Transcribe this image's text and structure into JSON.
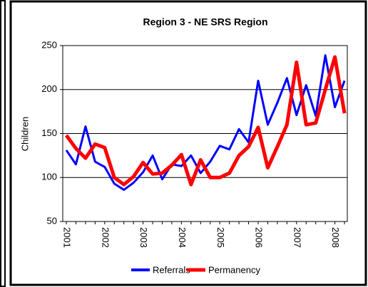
{
  "chart_data": {
    "type": "line",
    "title": "Region 3 - NE SRS Region",
    "ylabel": "Children",
    "categories": [
      "2001",
      null,
      null,
      null,
      "2002",
      null,
      null,
      null,
      "2003",
      null,
      null,
      null,
      "2004",
      null,
      null,
      null,
      "2005",
      null,
      null,
      null,
      "2006",
      null,
      null,
      null,
      "2007",
      null,
      null,
      null,
      "2008",
      null
    ],
    "series": [
      {
        "name": "Referrals",
        "color": "#0000ff",
        "values": [
          131,
          115,
          158,
          118,
          112,
          93,
          86,
          94,
          106,
          125,
          98,
          115,
          113,
          125,
          105,
          118,
          136,
          132,
          155,
          140,
          210,
          160,
          185,
          213,
          171,
          205,
          170,
          239,
          180,
          210
        ]
      },
      {
        "name": "Permanency",
        "color": "#ff0000",
        "values": [
          148,
          133,
          122,
          138,
          134,
          100,
          92,
          101,
          117,
          104,
          105,
          114,
          126,
          92,
          120,
          100,
          100,
          105,
          125,
          135,
          157,
          111,
          135,
          160,
          231,
          160,
          162,
          200,
          237,
          173
        ]
      }
    ],
    "ylim": [
      50,
      250
    ],
    "yticks": [
      50,
      100,
      150,
      200,
      250
    ],
    "grid": true,
    "legend": "bottom"
  }
}
